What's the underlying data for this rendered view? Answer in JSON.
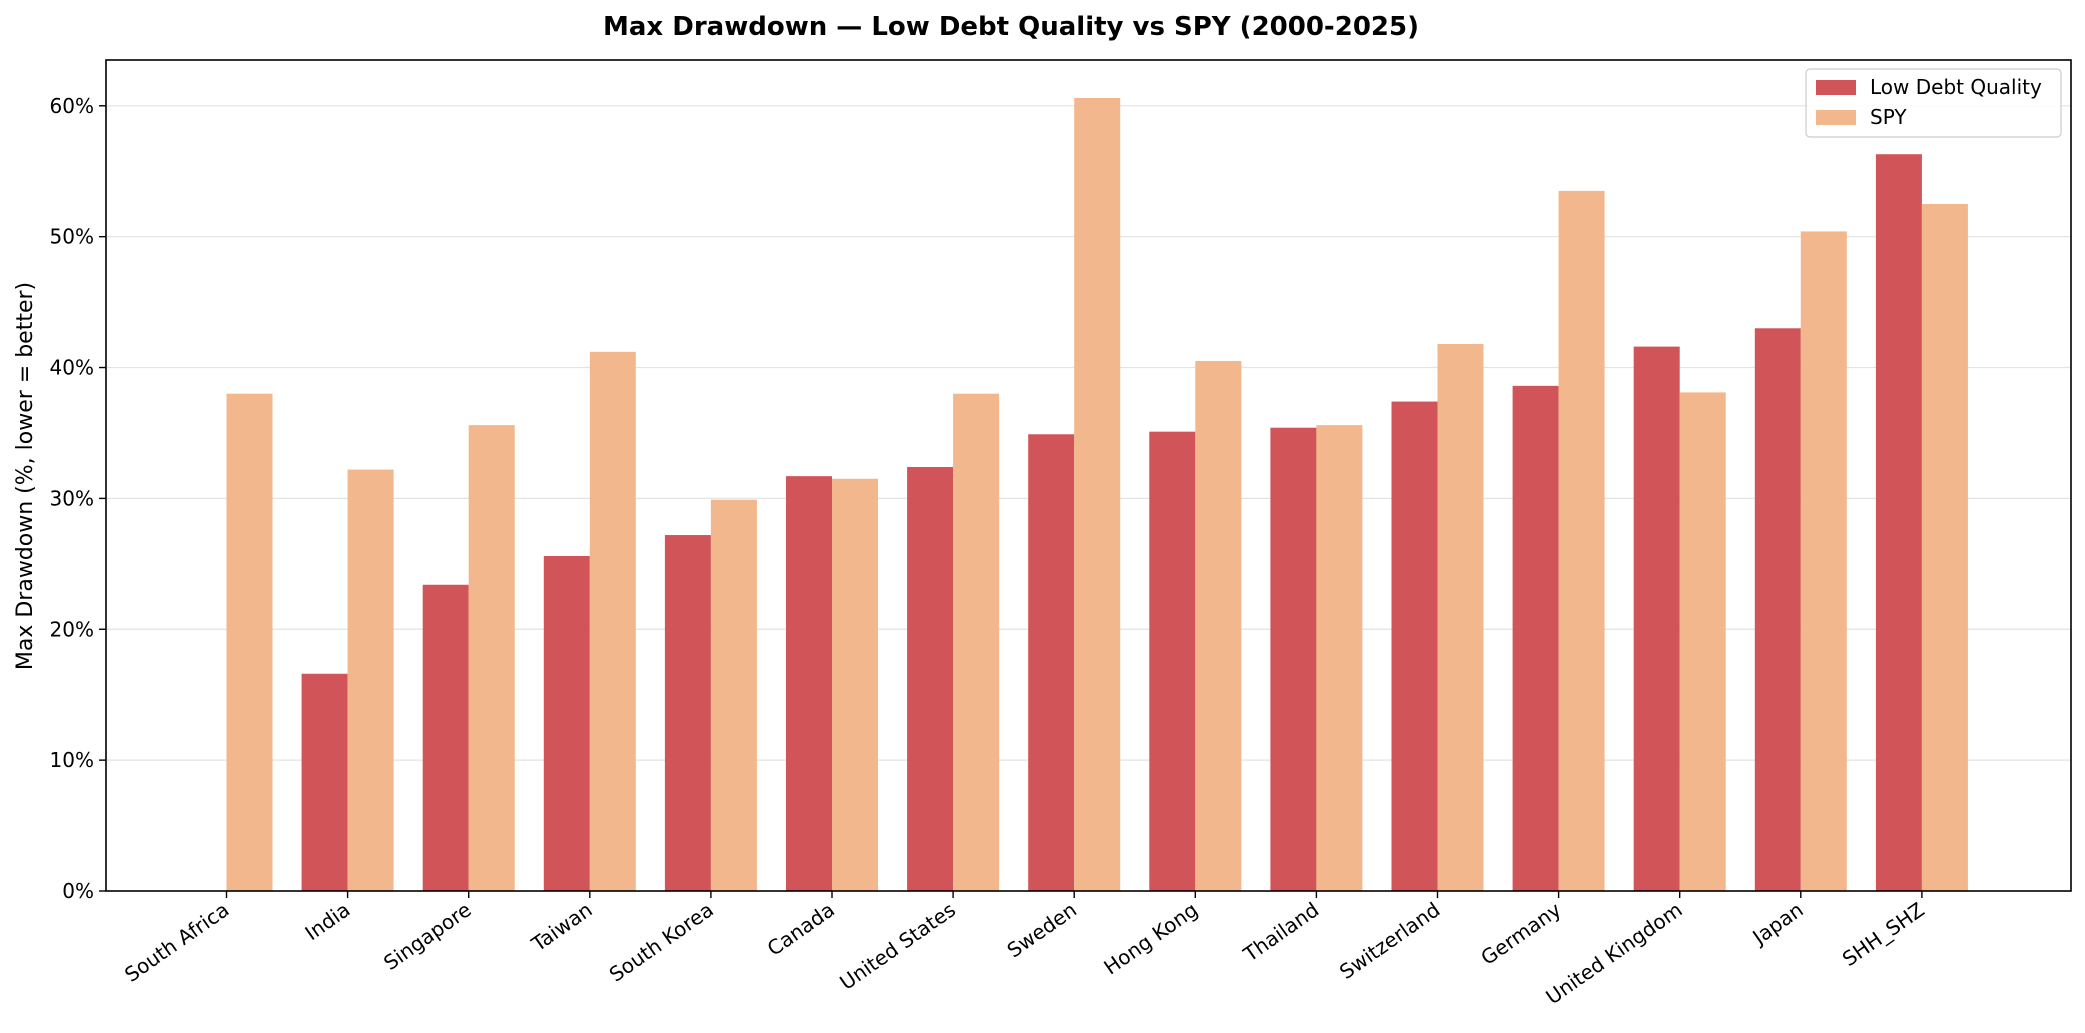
{
  "chart_data": {
    "type": "bar",
    "title": "Max Drawdown — Low Debt Quality vs SPY (2000-2025)",
    "xlabel": "",
    "ylabel": "Max Drawdown (%, lower = better)",
    "ylim": [
      0,
      63.5
    ],
    "yticks": [
      0,
      10,
      20,
      30,
      40,
      50,
      60
    ],
    "ytick_labels": [
      "0%",
      "10%",
      "20%",
      "30%",
      "40%",
      "50%",
      "60%"
    ],
    "grid": "horizontal",
    "legend_position": "top-right",
    "categories": [
      "South Africa",
      "India",
      "Singapore",
      "Taiwan",
      "South Korea",
      "Canada",
      "United States",
      "Sweden",
      "Hong Kong",
      "Thailand",
      "Switzerland",
      "Germany",
      "United Kingdom",
      "Japan",
      "SHH_SHZ"
    ],
    "series": [
      {
        "name": "Low Debt Quality",
        "color": "#d05458",
        "values": [
          null,
          16.6,
          23.4,
          25.6,
          27.2,
          31.7,
          32.4,
          34.9,
          35.1,
          35.4,
          37.4,
          38.6,
          41.6,
          43.0,
          56.3
        ]
      },
      {
        "name": "SPY",
        "color": "#f2b78c",
        "values": [
          38.0,
          32.2,
          35.6,
          41.2,
          29.9,
          31.5,
          38.0,
          60.6,
          40.5,
          35.6,
          41.8,
          53.5,
          38.1,
          50.4,
          52.5
        ]
      }
    ]
  }
}
